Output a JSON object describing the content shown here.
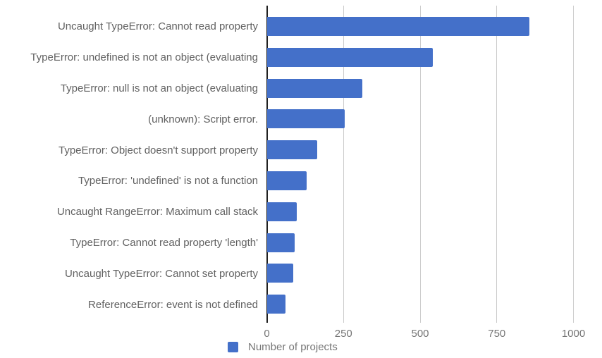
{
  "chart_data": {
    "type": "bar",
    "orientation": "horizontal",
    "title": "",
    "xlabel": "",
    "ylabel": "",
    "categories": [
      "Uncaught TypeError: Cannot read property",
      "TypeError: undefined is not an object (evaluating",
      "TypeError: null is not an object (evaluating",
      "(unknown): Script error.",
      "TypeError: Object doesn't support property",
      "TypeError: 'undefined' is not a function",
      "Uncaught RangeError: Maximum call stack",
      "TypeError: Cannot read property 'length'",
      "Uncaught TypeError: Cannot set property",
      "ReferenceError: event is not defined"
    ],
    "series": [
      {
        "name": "Number of projects",
        "values": [
          855,
          540,
          310,
          253,
          164,
          128,
          97,
          90,
          84,
          60
        ]
      }
    ],
    "x_ticks": [
      0,
      250,
      500,
      750,
      1000
    ],
    "xlim": [
      0,
      1000
    ],
    "grid": "vertical-only",
    "legend": {
      "label": "Number of projects",
      "position": "bottom"
    },
    "colors": {
      "bar": "#4470C9",
      "label_text": "#616161",
      "tick_text": "#757575",
      "axis_line": "#212121",
      "gridline": "#cccccc",
      "background": "#ffffff"
    }
  }
}
